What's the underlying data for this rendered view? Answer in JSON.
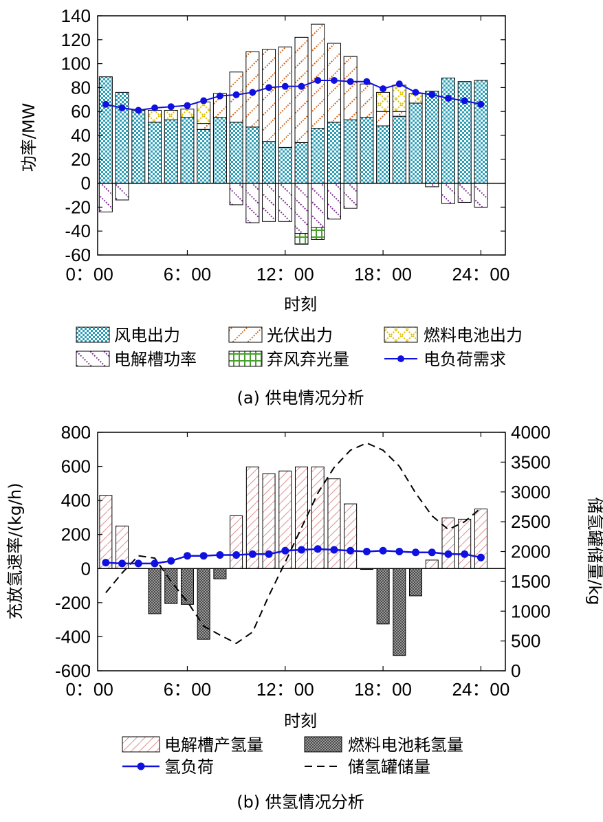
{
  "colors": {
    "wind": "#2a9fb8",
    "pv": "#d2691e",
    "fuelcell": "#e0c000",
    "electrolyzer": "#7b2f8f",
    "curtail": "#4aa02c",
    "load": "#1010e0",
    "h2prod": "#e3a0a0",
    "h2fc": "#555555",
    "storage": "#000000"
  },
  "chart_data": [
    {
      "type": "bar",
      "caption": "(a) 供电情况分析",
      "xlabel": "时刻",
      "ylabel": "功率/MW",
      "ylim": [
        -60,
        140
      ],
      "yticks": [
        "-60",
        "-40",
        "-20",
        "0",
        "20",
        "40",
        "60",
        "80",
        "100",
        "120",
        "140"
      ],
      "xticks": [
        "0：00",
        "6：00",
        "12：00",
        "18：00",
        "24：00"
      ],
      "x": [
        1,
        2,
        3,
        4,
        5,
        6,
        7,
        8,
        9,
        10,
        11,
        12,
        13,
        14,
        15,
        16,
        17,
        18,
        19,
        20,
        21,
        22,
        23,
        24
      ],
      "series": [
        {
          "name": "风电出力",
          "key": "wind",
          "values": [
            89,
            76,
            61,
            51,
            53,
            55,
            45,
            55,
            51,
            47,
            35,
            30,
            34,
            46,
            51,
            53,
            55,
            48,
            56,
            67,
            77,
            88,
            85,
            86
          ]
        },
        {
          "name": "光伏出力",
          "key": "pv",
          "values": [
            0,
            0,
            0,
            0,
            0,
            0,
            5,
            20,
            42,
            63,
            77,
            84,
            88,
            87,
            66,
            53,
            28,
            12,
            4,
            0,
            0,
            0,
            0,
            0
          ]
        },
        {
          "name": "燃料电池出力",
          "key": "fuelcell",
          "values": [
            0,
            0,
            0,
            10,
            8,
            7,
            18,
            0,
            0,
            0,
            0,
            0,
            0,
            0,
            0,
            0,
            0,
            16,
            22,
            8,
            0,
            0,
            0,
            0
          ]
        },
        {
          "name": "电解槽功率",
          "key": "electrolyzer",
          "values": [
            -24,
            -14,
            0,
            0,
            0,
            0,
            0,
            0,
            -18,
            -33,
            -32,
            -32,
            -42,
            -37,
            -30,
            -21,
            0,
            0,
            0,
            0,
            -3,
            -17,
            -16,
            -20
          ]
        },
        {
          "name": "弃风弃光量",
          "key": "curtail",
          "values": [
            0,
            0,
            0,
            0,
            0,
            0,
            0,
            0,
            0,
            0,
            0,
            0,
            -9,
            -10,
            0,
            0,
            0,
            0,
            0,
            0,
            0,
            0,
            0,
            0
          ]
        },
        {
          "name": "电负荷需求",
          "key": "load",
          "type": "line",
          "values": [
            66,
            63,
            61,
            63,
            64,
            65,
            69,
            73,
            74,
            76,
            80,
            81,
            81,
            86,
            86,
            85,
            85,
            79,
            83,
            76,
            74,
            71,
            69,
            66
          ]
        }
      ],
      "legend": [
        "风电出力",
        "光伏出力",
        "燃料电池出力",
        "电解槽功率",
        "弃风弃光量",
        "电负荷需求"
      ]
    },
    {
      "type": "bar",
      "caption": "(b) 供氢情况分析",
      "xlabel": "时刻",
      "ylabel": "充放氢速率/(kg/h)",
      "y2label": "储氢罐储量/kg",
      "ylim": [
        -600,
        800
      ],
      "y2lim": [
        0,
        4000
      ],
      "yticks": [
        "-600",
        "-400",
        "-200",
        "0",
        "200",
        "400",
        "600",
        "800"
      ],
      "y2ticks": [
        "0",
        "500",
        "1000",
        "1500",
        "2000",
        "2500",
        "3000",
        "3500",
        "4000"
      ],
      "xticks": [
        "0：00",
        "6：00",
        "12：00",
        "18：00",
        "24：00"
      ],
      "x": [
        1,
        2,
        3,
        4,
        5,
        6,
        7,
        8,
        9,
        10,
        11,
        12,
        13,
        14,
        15,
        16,
        17,
        18,
        19,
        20,
        21,
        22,
        23,
        24
      ],
      "series": [
        {
          "name": "电解槽产氢量",
          "key": "h2prod",
          "values": [
            430,
            250,
            0,
            0,
            0,
            0,
            0,
            0,
            310,
            597,
            557,
            573,
            597,
            597,
            527,
            380,
            0,
            0,
            0,
            0,
            50,
            297,
            290,
            350
          ]
        },
        {
          "name": "燃料电池耗氢量",
          "key": "h2fc",
          "values": [
            0,
            0,
            0,
            -265,
            -205,
            -210,
            -415,
            -60,
            0,
            0,
            0,
            0,
            0,
            0,
            0,
            0,
            -5,
            -325,
            -510,
            -160,
            0,
            0,
            0,
            0
          ]
        },
        {
          "name": "氢负荷",
          "key": "load",
          "type": "line",
          "values": [
            35,
            30,
            30,
            30,
            45,
            75,
            75,
            80,
            80,
            85,
            85,
            105,
            110,
            115,
            110,
            105,
            100,
            105,
            100,
            95,
            95,
            85,
            85,
            65
          ]
        },
        {
          "name": "储氢罐储量",
          "key": "storage",
          "type": "line",
          "axis": "right",
          "x": [
            1,
            2,
            3,
            4,
            5,
            6,
            7,
            8,
            9,
            10,
            11,
            12,
            13,
            14,
            15,
            16,
            17,
            18,
            19,
            20,
            21,
            22,
            23,
            24
          ],
          "values": [
            1310,
            1640,
            1930,
            1890,
            1500,
            1160,
            750,
            600,
            460,
            650,
            1260,
            1820,
            2400,
            2980,
            3410,
            3700,
            3820,
            3700,
            3430,
            2980,
            2600,
            2370,
            2500,
            2730
          ]
        }
      ],
      "legend": [
        "电解槽产氢量",
        "燃料电池耗氢量",
        "氢负荷",
        "储氢罐储量"
      ]
    }
  ]
}
